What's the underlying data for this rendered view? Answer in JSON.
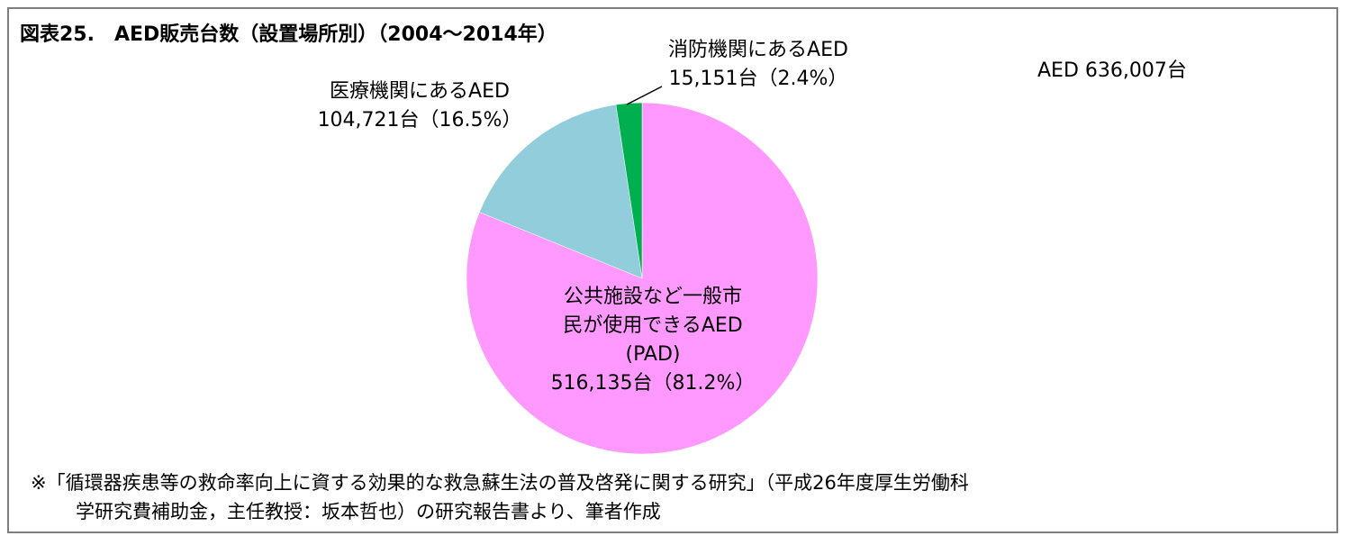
{
  "title": "図表25.　AED販売台数（設置場所別）（2004～2014年）",
  "total_label": "AED 636,007台",
  "note": {
    "line1": "※「循環器疾患等の救命率向上に資する効果的な救急蘇生法の普及啓発に関する研究」（平成26年度厚生労働科",
    "line2": "学研究費補助金，主任教授：坂本哲也）の研究報告書より、筆者作成"
  },
  "colors": {
    "pad": "#ff99ff",
    "medical": "#92cddc",
    "fire": "#00b050",
    "border": "#7f7f7f"
  },
  "chart_data": {
    "type": "pie",
    "title": "図表25.　AED販売台数（設置場所別）（2004～2014年）",
    "total": 636007,
    "unit": "台",
    "slices": [
      {
        "name": "公共施設など一般市民が使用できるAED (PAD)",
        "value": 516135,
        "percent": 81.2,
        "color": "#ff99ff",
        "label_lines": [
          "公共施設など一般市",
          "民が使用できるAED",
          "(PAD)",
          "516,135台（81.2%）"
        ]
      },
      {
        "name": "医療機関にあるAED",
        "value": 104721,
        "percent": 16.5,
        "color": "#92cddc",
        "label_lines": [
          "医療機関にあるAED",
          "104,721台（16.5%）"
        ]
      },
      {
        "name": "消防機関にあるAED",
        "value": 15151,
        "percent": 2.4,
        "color": "#00b050",
        "label_lines": [
          "消防機関にあるAED",
          "15,151台（2.4%）"
        ]
      }
    ],
    "start_angle_deg": 0,
    "direction": "clockwise"
  }
}
